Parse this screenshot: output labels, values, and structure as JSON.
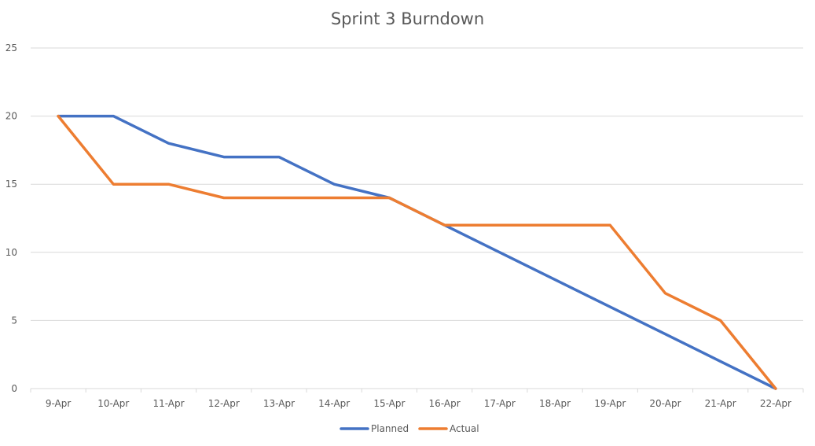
{
  "chart_data": {
    "type": "line",
    "title": "Sprint 3 Burndown",
    "xlabel": "",
    "ylabel": "",
    "categories": [
      "9-Apr",
      "10-Apr",
      "11-Apr",
      "12-Apr",
      "13-Apr",
      "14-Apr",
      "15-Apr",
      "16-Apr",
      "17-Apr",
      "18-Apr",
      "19-Apr",
      "20-Apr",
      "21-Apr",
      "22-Apr"
    ],
    "ylim": [
      0,
      25
    ],
    "yticks": [
      0,
      5,
      10,
      15,
      20,
      25
    ],
    "grid": true,
    "legend_position": "bottom",
    "series": [
      {
        "name": "Planned",
        "color": "#4472C4",
        "values": [
          20,
          20,
          18,
          17,
          17,
          15,
          14,
          12,
          10,
          8,
          6,
          4,
          2,
          0
        ]
      },
      {
        "name": "Actual",
        "color": "#ED7D31",
        "values": [
          20,
          15,
          15,
          14,
          14,
          14,
          14,
          12,
          12,
          12,
          12,
          7,
          5,
          0
        ]
      }
    ]
  }
}
